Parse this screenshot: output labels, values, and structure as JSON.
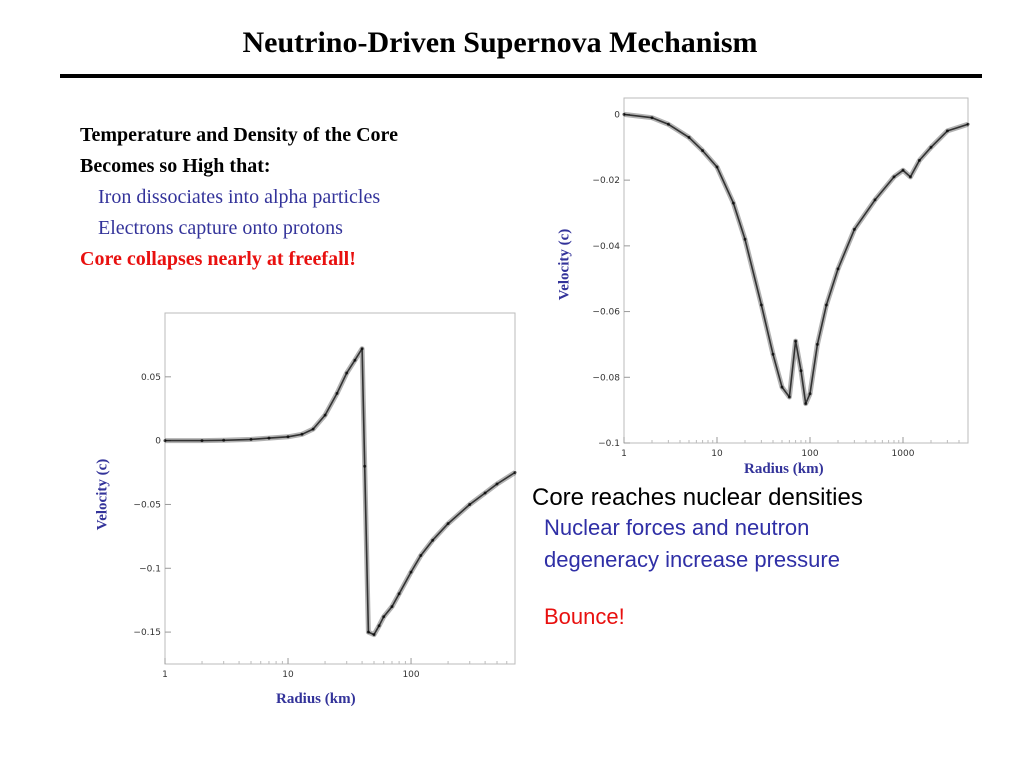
{
  "title": "Neutrino-Driven Supernova Mechanism",
  "intro": {
    "line1": "Temperature and Density of the Core",
    "line2": "Becomes so High that:",
    "line3": "Iron dissociates into alpha particles",
    "line4": "Electrons capture onto protons",
    "line5": "Core collapses nearly at freefall!"
  },
  "summary": {
    "heading": "Core reaches nuclear densities",
    "sub1": "Nuclear forces and neutron",
    "sub2": "degeneracy increase pressure",
    "bounce": "Bounce!"
  },
  "chart_data": [
    {
      "type": "scatter",
      "title": "",
      "xlabel": "Radius (km)",
      "ylabel": "Velocity (c)",
      "xscale": "log",
      "xlim": [
        1,
        5000
      ],
      "ylim": [
        -0.1,
        0.005
      ],
      "x_ticks": [
        "1",
        "10",
        "100",
        "1000"
      ],
      "y_ticks": [
        "0",
        "−0.02",
        "−0.04",
        "−0.06",
        "−0.08",
        "−0.1"
      ],
      "series": [
        {
          "x": [
            1,
            2,
            3,
            5,
            7,
            10,
            15,
            20,
            30,
            40,
            50,
            60,
            70,
            80,
            90,
            100,
            120,
            150,
            200,
            300,
            500,
            800,
            1000,
            1200,
            1500,
            2000,
            3000,
            5000
          ],
          "y": [
            0,
            -0.001,
            -0.003,
            -0.007,
            -0.011,
            -0.016,
            -0.027,
            -0.038,
            -0.058,
            -0.073,
            -0.083,
            -0.086,
            -0.069,
            -0.078,
            -0.088,
            -0.085,
            -0.07,
            -0.058,
            -0.047,
            -0.035,
            -0.026,
            -0.019,
            -0.017,
            -0.019,
            -0.014,
            -0.01,
            -0.005,
            -0.003
          ]
        }
      ]
    },
    {
      "type": "scatter",
      "title": "",
      "xlabel": "Radius (km)",
      "ylabel": "Velocity (c)",
      "xscale": "log",
      "xlim": [
        1,
        700
      ],
      "ylim": [
        -0.175,
        0.1
      ],
      "x_ticks": [
        "1",
        "10",
        "100"
      ],
      "y_ticks": [
        "0.05",
        "0",
        "−0.05",
        "−0.1",
        "−0.15"
      ],
      "series": [
        {
          "x": [
            1,
            2,
            3,
            5,
            7,
            10,
            13,
            16,
            20,
            25,
            30,
            35,
            40,
            42,
            45,
            50,
            55,
            60,
            70,
            80,
            100,
            120,
            150,
            200,
            300,
            400,
            500,
            700
          ],
          "y": [
            0,
            0,
            0.0003,
            0.001,
            0.002,
            0.003,
            0.005,
            0.009,
            0.02,
            0.037,
            0.053,
            0.063,
            0.072,
            -0.02,
            -0.15,
            -0.152,
            -0.145,
            -0.138,
            -0.13,
            -0.12,
            -0.103,
            -0.09,
            -0.078,
            -0.065,
            -0.05,
            -0.041,
            -0.034,
            -0.025
          ]
        }
      ]
    }
  ]
}
